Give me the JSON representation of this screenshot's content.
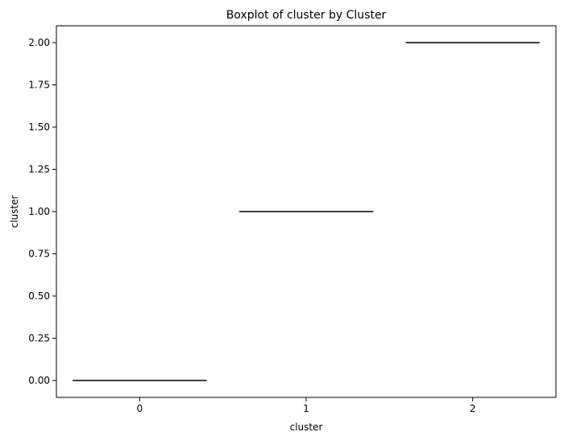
{
  "chart_data": {
    "type": "boxplot",
    "title": "Boxplot of cluster by Cluster",
    "xlabel": "cluster",
    "ylabel": "cluster",
    "categories": [
      "0",
      "1",
      "2"
    ],
    "boxes": [
      {
        "category": "0",
        "min": 0.0,
        "q1": 0.0,
        "median": 0.0,
        "q3": 0.0,
        "max": 0.0
      },
      {
        "category": "1",
        "min": 1.0,
        "q1": 1.0,
        "median": 1.0,
        "q3": 1.0,
        "max": 1.0
      },
      {
        "category": "2",
        "min": 2.0,
        "q1": 2.0,
        "median": 2.0,
        "q3": 2.0,
        "max": 2.0
      }
    ],
    "ylim": [
      -0.1,
      2.1
    ],
    "yticks": [
      "0.00",
      "0.25",
      "0.50",
      "0.75",
      "1.00",
      "1.25",
      "1.50",
      "1.75",
      "2.00"
    ],
    "grid": false,
    "colors": {
      "box_line": "#3f3f3f",
      "axes": "#000000"
    }
  }
}
